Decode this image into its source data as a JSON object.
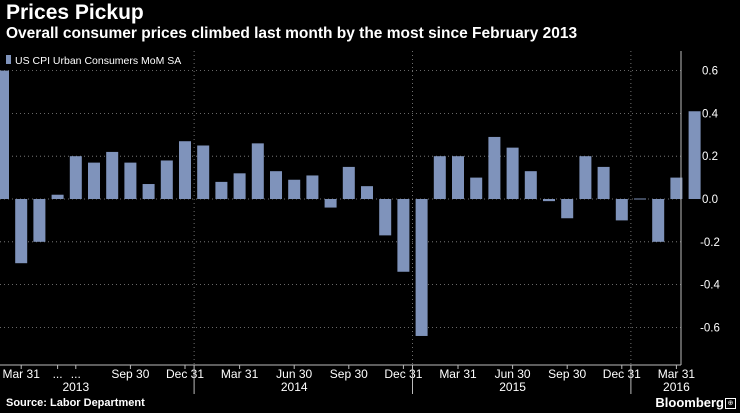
{
  "header": {
    "title": "Prices Pickup",
    "subtitle": "Overall consumer prices climbed last month by the most since February 2013"
  },
  "footer": {
    "source": "Source: Labor Department",
    "brand": "Bloomberg",
    "brand_mark": "⊕"
  },
  "colors": {
    "bar": "#7f93bb",
    "grid": "#8a8a8a",
    "background": "#000000",
    "text": "#ffffff"
  },
  "chart_data": {
    "type": "bar",
    "title": "Prices Pickup",
    "subtitle": "Overall consumer prices climbed last month by the most since February 2013",
    "legend": {
      "label": "US CPI Urban Consumers MoM SA",
      "position": "top-left"
    },
    "ylim": [
      -0.75,
      0.75
    ],
    "yticks": [
      0.6,
      0.4,
      0.2,
      0.0,
      -0.2,
      -0.4,
      -0.6
    ],
    "ytick_labels": [
      "0.6",
      "0.4",
      "0.2",
      "0.0",
      "-0.2",
      "-0.4",
      "-0.6"
    ],
    "y_axis_side": "right",
    "grid": "horizontal dotted",
    "x": [
      "2013-02",
      "2013-03",
      "2013-04",
      "2013-05",
      "2013-06",
      "2013-07",
      "2013-08",
      "2013-09",
      "2013-10",
      "2013-11",
      "2013-12",
      "2014-01",
      "2014-02",
      "2014-03",
      "2014-04",
      "2014-05",
      "2014-06",
      "2014-07",
      "2014-08",
      "2014-09",
      "2014-10",
      "2014-11",
      "2014-12",
      "2015-01",
      "2015-02",
      "2015-03",
      "2015-04",
      "2015-05",
      "2015-06",
      "2015-07",
      "2015-08",
      "2015-09",
      "2015-10",
      "2015-11",
      "2015-12",
      "2016-01",
      "2016-02",
      "2016-03",
      "2016-04"
    ],
    "values": [
      0.6,
      -0.3,
      -0.2,
      0.02,
      0.2,
      0.17,
      0.22,
      0.17,
      0.07,
      0.18,
      0.27,
      0.25,
      0.08,
      0.12,
      0.26,
      0.13,
      0.09,
      0.11,
      -0.04,
      0.15,
      0.06,
      -0.17,
      -0.34,
      -0.64,
      0.2,
      0.2,
      0.1,
      0.29,
      0.24,
      0.13,
      -0.01,
      -0.09,
      0.2,
      0.15,
      -0.1,
      0.0,
      -0.2,
      0.1,
      0.41
    ],
    "x_tick_labels": [
      {
        "label": "Mar 31",
        "month": "2013-03"
      },
      {
        "label": "...",
        "month": "2013-05"
      },
      {
        "label": "...",
        "month": "2013-06"
      },
      {
        "label": "Sep 30",
        "month": "2013-09"
      },
      {
        "label": "Dec 31",
        "month": "2013-12"
      },
      {
        "label": "Mar 31",
        "month": "2014-03"
      },
      {
        "label": "Jun 30",
        "month": "2014-06"
      },
      {
        "label": "Sep 30",
        "month": "2014-09"
      },
      {
        "label": "Dec 31",
        "month": "2014-12"
      },
      {
        "label": "Mar 31",
        "month": "2015-03"
      },
      {
        "label": "Jun 30",
        "month": "2015-06"
      },
      {
        "label": "Sep 30",
        "month": "2015-09"
      },
      {
        "label": "Dec 31",
        "month": "2015-12"
      },
      {
        "label": "Mar 31",
        "month": "2016-03"
      }
    ],
    "year_labels": [
      {
        "label": "2013",
        "month": "2013-06"
      },
      {
        "label": "2014",
        "month": "2014-06"
      },
      {
        "label": "2015",
        "month": "2015-06"
      },
      {
        "label": "2016",
        "month": "2016-03"
      }
    ],
    "year_separators": [
      "2014-01",
      "2015-01",
      "2016-01"
    ]
  }
}
